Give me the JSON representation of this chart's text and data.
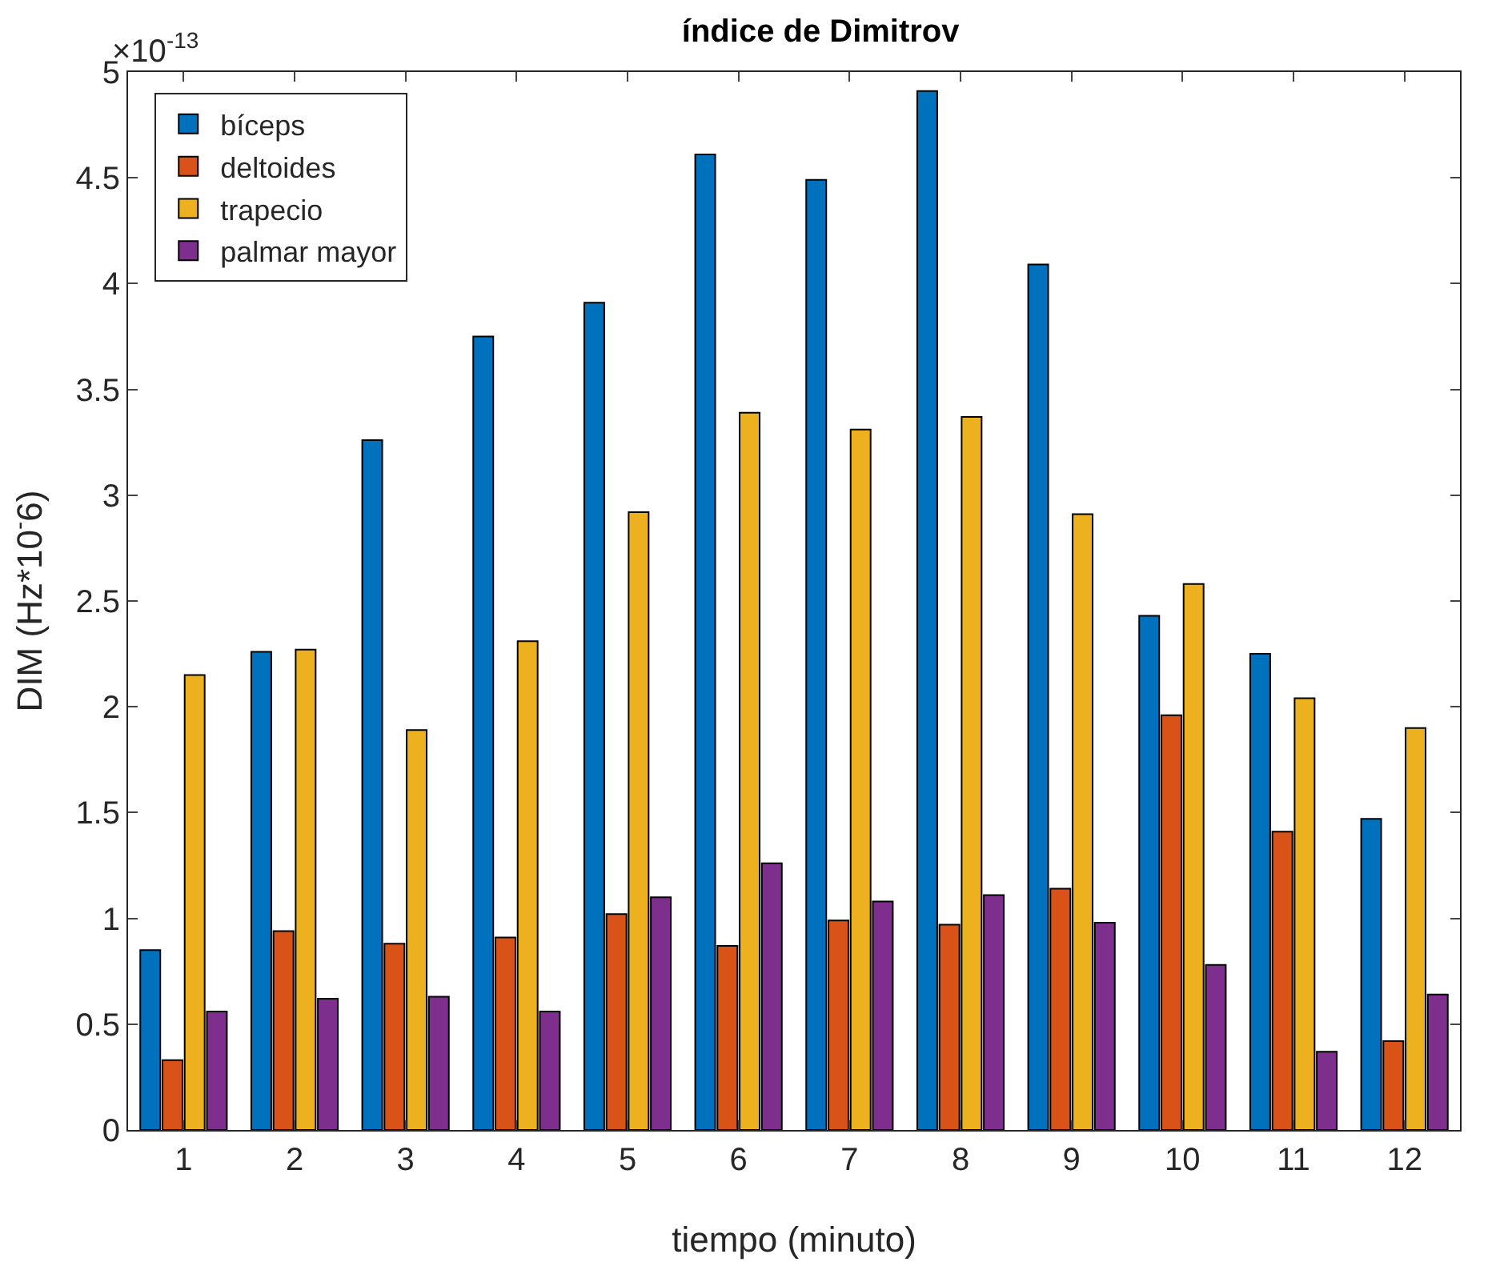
{
  "chart_data": {
    "type": "bar",
    "title": "índice de Dimitrov",
    "xlabel": "tiempo (minuto)",
    "ylabel": "DIM (Hz*10$^{-}$6)",
    "annotations": [
      "×10$^{-13}$"
    ],
    "x": [
      1,
      2,
      3,
      4,
      5,
      6,
      7,
      8,
      9,
      10,
      11,
      12
    ],
    "xlim": [
      0.5,
      12.5
    ],
    "xticks": [
      1,
      2,
      3,
      4,
      5,
      6,
      7,
      8,
      9,
      10,
      11,
      12
    ],
    "series": [
      {
        "name": "bíceps",
        "color": "#0072bd",
        "values": [
          0.85,
          2.26,
          3.26,
          3.75,
          3.91,
          4.61,
          4.49,
          4.91,
          4.09,
          2.43,
          2.25,
          1.47
        ]
      },
      {
        "name": "deltoides",
        "color": "#d95319",
        "values": [
          0.33,
          0.94,
          0.88,
          0.91,
          1.02,
          0.87,
          0.99,
          0.97,
          1.14,
          1.96,
          1.41,
          0.42
        ]
      },
      {
        "name": "trapecio",
        "color": "#edb120",
        "values": [
          2.15,
          2.27,
          1.89,
          2.31,
          2.92,
          3.39,
          3.31,
          3.37,
          2.91,
          2.58,
          2.04,
          1.9
        ]
      },
      {
        "name": "palmar mayor",
        "color": "#7e2f8e",
        "values": [
          0.56,
          0.62,
          0.63,
          0.56,
          1.1,
          1.26,
          1.08,
          1.11,
          0.98,
          0.78,
          0.37,
          0.64
        ]
      }
    ],
    "ylim": [
      0,
      5
    ],
    "yticks": [
      0,
      0.5,
      1,
      1.5,
      2,
      2.5,
      3,
      3.5,
      4,
      4.5,
      5
    ],
    "grid": false,
    "legend": "top left"
  }
}
